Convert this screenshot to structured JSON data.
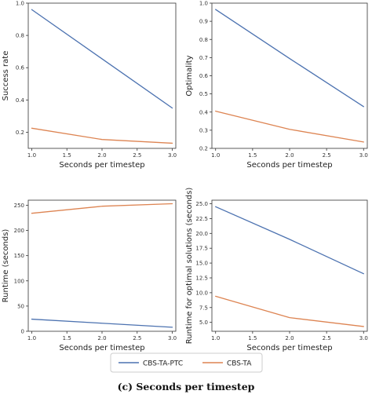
{
  "chart_data": [
    {
      "type": "line",
      "title": "",
      "xlabel": "Seconds per timestep",
      "ylabel": "Success rate",
      "xlim": [
        0.95,
        3.05
      ],
      "ylim": [
        0.1,
        1.0
      ],
      "xticks": [
        "1.0",
        "1.5",
        "2.0",
        "2.5",
        "3.0"
      ],
      "yticks": [
        "0.2",
        "0.4",
        "0.6",
        "0.8",
        "1.0"
      ],
      "x": [
        1.0,
        2.0,
        3.0
      ],
      "series": [
        {
          "name": "CBS-TA-PTC",
          "color": "#4c72b0",
          "values": [
            0.96,
            0.655,
            0.35
          ]
        },
        {
          "name": "CBS-TA",
          "color": "#dd8452",
          "values": [
            0.225,
            0.155,
            0.132
          ]
        }
      ]
    },
    {
      "type": "line",
      "title": "",
      "xlabel": "Seconds per timestep",
      "ylabel": "Optimality",
      "xlim": [
        0.95,
        3.05
      ],
      "ylim": [
        0.2,
        1.0
      ],
      "xticks": [
        "1.0",
        "1.5",
        "2.0",
        "2.5",
        "3.0"
      ],
      "yticks": [
        "0.2",
        "0.3",
        "0.4",
        "0.5",
        "0.6",
        "0.7",
        "0.8",
        "0.9",
        "1.0"
      ],
      "x": [
        1.0,
        2.0,
        3.0
      ],
      "series": [
        {
          "name": "CBS-TA-PTC",
          "color": "#4c72b0",
          "values": [
            0.965,
            0.695,
            0.43
          ]
        },
        {
          "name": "CBS-TA",
          "color": "#dd8452",
          "values": [
            0.405,
            0.305,
            0.235
          ]
        }
      ]
    },
    {
      "type": "line",
      "title": "",
      "xlabel": "Seconds per timestep",
      "ylabel": "Runtime (seconds)",
      "xlim": [
        0.95,
        3.05
      ],
      "ylim": [
        0,
        260
      ],
      "xticks": [
        "1.0",
        "1.5",
        "2.0",
        "2.5",
        "3.0"
      ],
      "yticks": [
        "0",
        "50",
        "100",
        "150",
        "200",
        "250"
      ],
      "x": [
        1.0,
        2.0,
        3.0
      ],
      "series": [
        {
          "name": "CBS-TA-PTC",
          "color": "#4c72b0",
          "values": [
            24,
            16,
            8
          ]
        },
        {
          "name": "CBS-TA",
          "color": "#dd8452",
          "values": [
            234,
            248,
            253
          ]
        }
      ]
    },
    {
      "type": "line",
      "title": "",
      "xlabel": "Seconds per timestep",
      "ylabel": "Runtime for optimal solutions (seconds)",
      "xlim": [
        0.95,
        3.05
      ],
      "ylim": [
        3.5,
        25.6
      ],
      "xticks": [
        "1.0",
        "1.5",
        "2.0",
        "2.5",
        "3.0"
      ],
      "yticks": [
        "5.0",
        "7.5",
        "10.0",
        "12.5",
        "15.0",
        "17.5",
        "20.0",
        "22.5",
        "25.0"
      ],
      "x": [
        1.0,
        2.0,
        3.0
      ],
      "series": [
        {
          "name": "CBS-TA-PTC",
          "color": "#4c72b0",
          "values": [
            24.5,
            19.0,
            13.2
          ]
        },
        {
          "name": "CBS-TA",
          "color": "#dd8452",
          "values": [
            9.4,
            5.8,
            4.3
          ]
        }
      ]
    }
  ],
  "legend": {
    "placement": "bottom-center",
    "items": [
      {
        "label": "CBS-TA-PTC",
        "color": "#4c72b0"
      },
      {
        "label": "CBS-TA",
        "color": "#dd8452"
      }
    ]
  },
  "caption": "(c) Seconds per timestep"
}
